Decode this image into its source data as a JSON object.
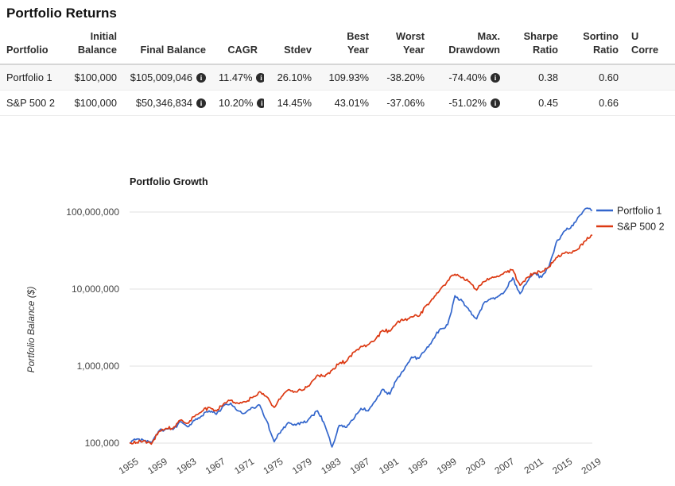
{
  "page": {
    "title": "Portfolio Returns"
  },
  "table": {
    "columns": [
      {
        "label": "Portfolio",
        "align": "left"
      },
      {
        "label": "Initial Balance",
        "align": "right"
      },
      {
        "label": "Final Balance",
        "align": "right"
      },
      {
        "label": "CAGR",
        "align": "right"
      },
      {
        "label": "Stdev",
        "align": "right"
      },
      {
        "label": "Best Year",
        "align": "right"
      },
      {
        "label": "Worst Year",
        "align": "right"
      },
      {
        "label": "Max. Drawdown",
        "align": "right"
      },
      {
        "label": "Sharpe Ratio",
        "align": "right"
      },
      {
        "label": "Sortino Ratio",
        "align": "right"
      },
      {
        "label": "U Corre",
        "align": "left",
        "clipped": true
      }
    ],
    "rows": [
      {
        "name": "Portfolio 1",
        "cells": [
          {
            "text": "Portfolio 1"
          },
          {
            "text": "$100,000"
          },
          {
            "text": "$105,009,046",
            "info": true
          },
          {
            "text": "11.47%",
            "info": true
          },
          {
            "text": "26.10%"
          },
          {
            "text": "109.93%"
          },
          {
            "text": "-38.20%"
          },
          {
            "text": "-74.40%",
            "info": true
          },
          {
            "text": "0.38"
          },
          {
            "text": "0.60"
          },
          {
            "text": ""
          }
        ]
      },
      {
        "name": "S&P 500 2",
        "cells": [
          {
            "text": "S&P 500 2"
          },
          {
            "text": "$100,000"
          },
          {
            "text": "$50,346,834",
            "info": true
          },
          {
            "text": "10.20%",
            "info": true
          },
          {
            "text": "14.45%"
          },
          {
            "text": "43.01%"
          },
          {
            "text": "-37.06%"
          },
          {
            "text": "-51.02%",
            "info": true
          },
          {
            "text": "0.45"
          },
          {
            "text": "0.66"
          },
          {
            "text": ""
          }
        ]
      }
    ]
  },
  "chart": {
    "title": "Portfolio Growth",
    "y_axis_label": "Portfolio Balance ($)",
    "legend": [
      {
        "label": "Portfolio 1",
        "color": "#3366CC"
      },
      {
        "label": "S&P 500 2",
        "color": "#DC3912"
      }
    ],
    "grid_color": "#e2e2e2",
    "tick_text_color": "#444444"
  },
  "chart_data": {
    "type": "line",
    "title": "Portfolio Growth",
    "ylabel": "Portfolio Balance ($)",
    "yscale": "log",
    "legend_position": "right",
    "grid": true,
    "x_ticks": [
      1955,
      1959,
      1963,
      1967,
      1971,
      1975,
      1979,
      1983,
      1987,
      1991,
      1995,
      1999,
      2003,
      2007,
      2011,
      2015,
      2019
    ],
    "y_ticks": [
      {
        "value": 100000000,
        "label": "100,000,000"
      },
      {
        "value": 10000000,
        "label": "10,000,000"
      },
      {
        "value": 1000000,
        "label": "1,000,000"
      },
      {
        "value": 100000,
        "label": "100,000"
      }
    ],
    "xlim": [
      1955,
      2019
    ],
    "ylim": [
      75000,
      150000000
    ],
    "x": [
      1955,
      1956,
      1957,
      1958,
      1959,
      1960,
      1961,
      1962,
      1963,
      1964,
      1965,
      1966,
      1967,
      1968,
      1969,
      1970,
      1971,
      1972,
      1973,
      1974,
      1975,
      1976,
      1977,
      1978,
      1979,
      1980,
      1981,
      1982,
      1983,
      1984,
      1985,
      1986,
      1987,
      1988,
      1989,
      1990,
      1991,
      1992,
      1993,
      1994,
      1995,
      1996,
      1997,
      1998,
      1999,
      2000,
      2001,
      2002,
      2003,
      2004,
      2005,
      2006,
      2007,
      2008,
      2009,
      2010,
      2011,
      2012,
      2013,
      2014,
      2015,
      2016,
      2017,
      2018,
      2019
    ],
    "series": [
      {
        "name": "Portfolio 1",
        "color": "#3366CC",
        "values": [
          100000,
          113000,
          108000,
          101000,
          142000,
          153000,
          150000,
          190000,
          163000,
          197000,
          226000,
          263000,
          236000,
          306000,
          331000,
          263000,
          246000,
          291000,
          311000,
          192000,
          104000,
          147000,
          186000,
          171000,
          183000,
          216000,
          263000,
          172000,
          89000,
          170000,
          160000,
          205000,
          282000,
          262000,
          352000,
          500000,
          432000,
          685000,
          905000,
          1310000,
          1260000,
          1650000,
          2250000,
          3050000,
          3450000,
          8200000,
          7000000,
          5200000,
          4100000,
          6600000,
          7600000,
          8100000,
          9700000,
          14000000,
          8700000,
          12500000,
          16000000,
          14200000,
          19500000,
          40000000,
          55000000,
          62000000,
          85000000,
          110000000,
          105009046
        ]
      },
      {
        "name": "S&P 500 2",
        "color": "#DC3912",
        "values": [
          100000,
          102000,
          108000,
          97000,
          139000,
          155000,
          156000,
          198000,
          181000,
          222000,
          258000,
          291000,
          261000,
          324000,
          360000,
          329000,
          343000,
          391000,
          466000,
          397000,
          291000,
          400000,
          495000,
          460000,
          490000,
          580000,
          767000,
          729000,
          886000,
          1085000,
          1153000,
          1524000,
          1807000,
          1900000,
          2220000,
          2919000,
          2828000,
          3691000,
          3971000,
          4372000,
          4428000,
          6085000,
          7490000,
          9990000,
          12850000,
          15550000,
          14130000,
          12450000,
          9695000,
          12480000,
          13840000,
          14520000,
          16810000,
          17730000,
          11180000,
          14140000,
          16280000,
          16620000,
          19270000,
          25520000,
          29020000,
          29420000,
          32950000,
          42000000,
          50346834
        ]
      }
    ]
  }
}
